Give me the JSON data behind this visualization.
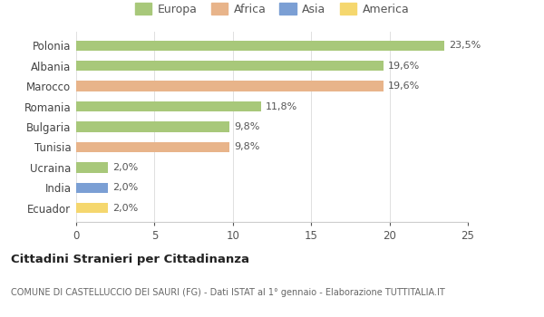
{
  "countries": [
    "Ecuador",
    "India",
    "Ucraina",
    "Tunisia",
    "Bulgaria",
    "Romania",
    "Marocco",
    "Albania",
    "Polonia"
  ],
  "values": [
    2.0,
    2.0,
    2.0,
    9.8,
    9.8,
    11.8,
    19.6,
    19.6,
    23.5
  ],
  "labels": [
    "2,0%",
    "2,0%",
    "2,0%",
    "9,8%",
    "9,8%",
    "11,8%",
    "19,6%",
    "19,6%",
    "23,5%"
  ],
  "colors": [
    "#f5d76e",
    "#7b9fd4",
    "#a8c87a",
    "#e8b48a",
    "#a8c87a",
    "#a8c87a",
    "#e8b48a",
    "#a8c87a",
    "#a8c87a"
  ],
  "legend_labels": [
    "Europa",
    "Africa",
    "Asia",
    "America"
  ],
  "legend_colors": [
    "#a8c87a",
    "#e8b48a",
    "#7b9fd4",
    "#f5d76e"
  ],
  "title": "Cittadini Stranieri per Cittadinanza",
  "subtitle": "COMUNE DI CASTELLUCCIO DEI SAURI (FG) - Dati ISTAT al 1° gennaio - Elaborazione TUTTITALIA.IT",
  "xlim": [
    0,
    25
  ],
  "xticks": [
    0,
    5,
    10,
    15,
    20,
    25
  ],
  "background_color": "#ffffff",
  "grid_color": "#e0e0e0"
}
